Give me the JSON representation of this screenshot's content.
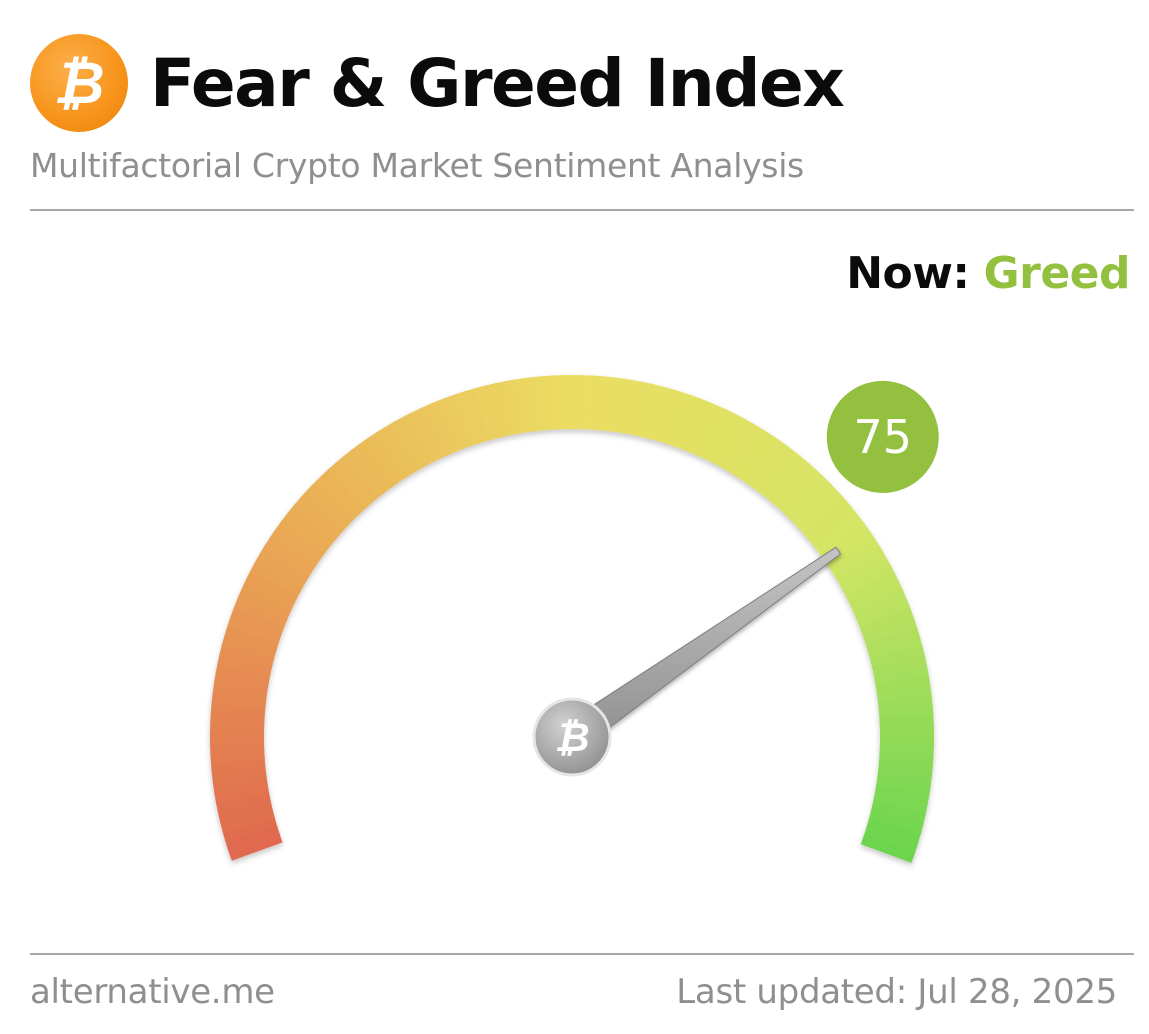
{
  "header": {
    "logo_icon": "bitcoin-icon",
    "logo_glyph": "₿",
    "title": "Fear & Greed Index",
    "subtitle": "Multifactorial Crypto Market Sentiment Analysis"
  },
  "status": {
    "now_label": "Now:",
    "now_value": "Greed",
    "now_color": "#93c13f"
  },
  "chart_data": {
    "type": "gauge",
    "value": 75,
    "value_label": "75",
    "range": [
      0,
      100
    ],
    "badge_color": "#93c13f",
    "gradient_colors": [
      "#e0684f",
      "#eaa954",
      "#ebdd63",
      "#d4e565",
      "#6ad44e"
    ],
    "center_icon": "bitcoin-icon",
    "center_glyph": "₿"
  },
  "footer": {
    "source": "alternative.me",
    "last_updated": "Last updated: Jul 28, 2025"
  }
}
